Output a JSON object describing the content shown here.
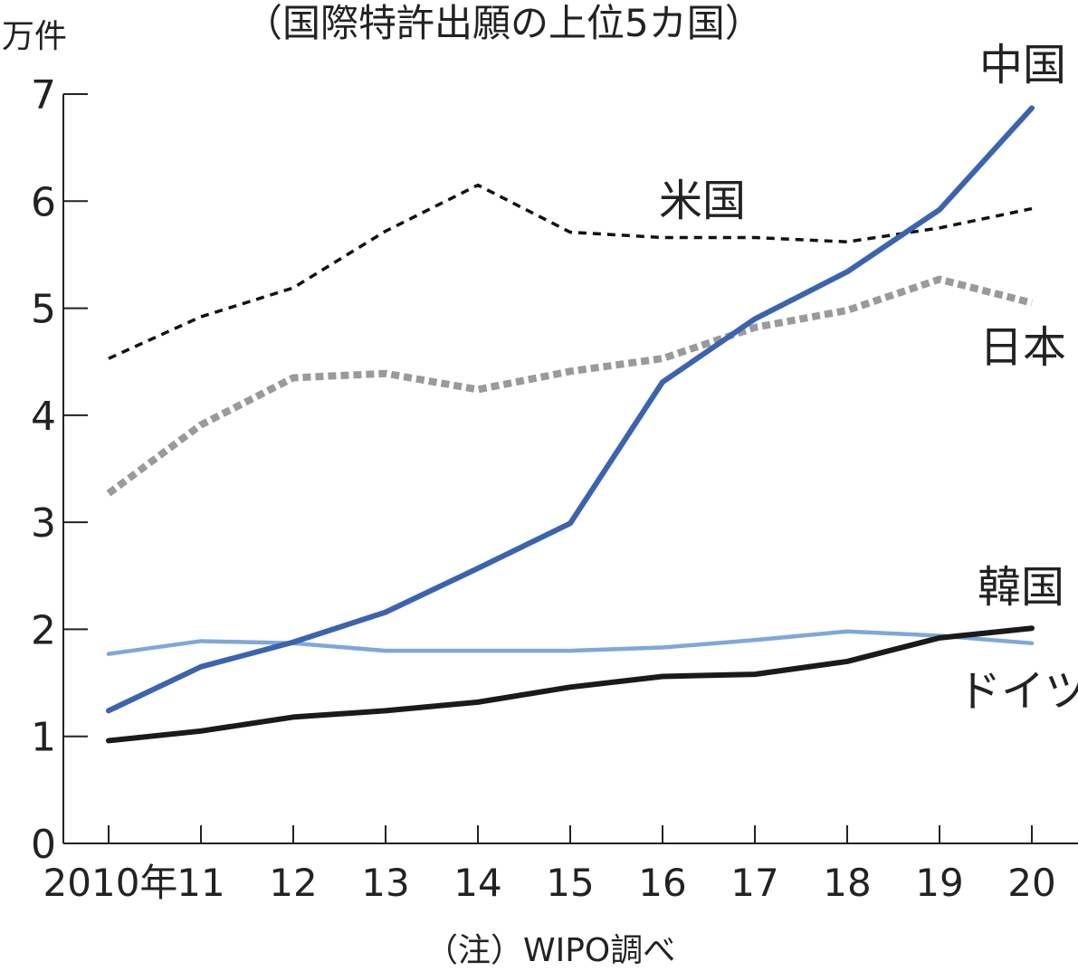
{
  "chart_data": {
    "type": "line",
    "title": "（国際特許出願の上位5カ国）",
    "ylabel": "万件",
    "note": "（注）WIPO調べ",
    "ylim": [
      0,
      7
    ],
    "yticks": [
      "0",
      "1",
      "2",
      "3",
      "4",
      "5",
      "6",
      "7"
    ],
    "x": [
      2010,
      2011,
      2012,
      2013,
      2014,
      2015,
      2016,
      2017,
      2018,
      2019,
      2020
    ],
    "xtick_labels": [
      "2010年",
      "11",
      "12",
      "13",
      "14",
      "15",
      "16",
      "17",
      "18",
      "19",
      "20"
    ],
    "grid": false,
    "series": [
      {
        "name": "米国",
        "color": "#111111",
        "style": "dashed",
        "values": [
          4.53,
          4.92,
          5.19,
          5.72,
          6.15,
          5.71,
          5.66,
          5.66,
          5.62,
          5.75,
          5.93
        ]
      },
      {
        "name": "日本",
        "color": "#9a9a9a",
        "style": "dotted",
        "values": [
          3.27,
          3.91,
          4.35,
          4.39,
          4.24,
          4.41,
          4.53,
          4.82,
          4.98,
          5.27,
          5.05
        ]
      },
      {
        "name": "韓国",
        "color": "#7fa7d9",
        "style": "solid",
        "values": [
          1.77,
          1.89,
          1.87,
          1.8,
          1.8,
          1.8,
          1.83,
          1.9,
          1.98,
          1.94,
          1.87
        ]
      },
      {
        "name": "ドイツ",
        "color": "#1a1a1a",
        "style": "solid",
        "values": [
          0.96,
          1.05,
          1.18,
          1.24,
          1.32,
          1.46,
          1.56,
          1.58,
          1.7,
          1.92,
          2.01
        ]
      },
      {
        "name": "中国",
        "color": "#3b63b0",
        "style": "solid",
        "values": [
          1.24,
          1.65,
          1.88,
          2.16,
          2.57,
          2.99,
          4.31,
          4.9,
          5.34,
          5.92,
          6.87
        ]
      }
    ]
  }
}
